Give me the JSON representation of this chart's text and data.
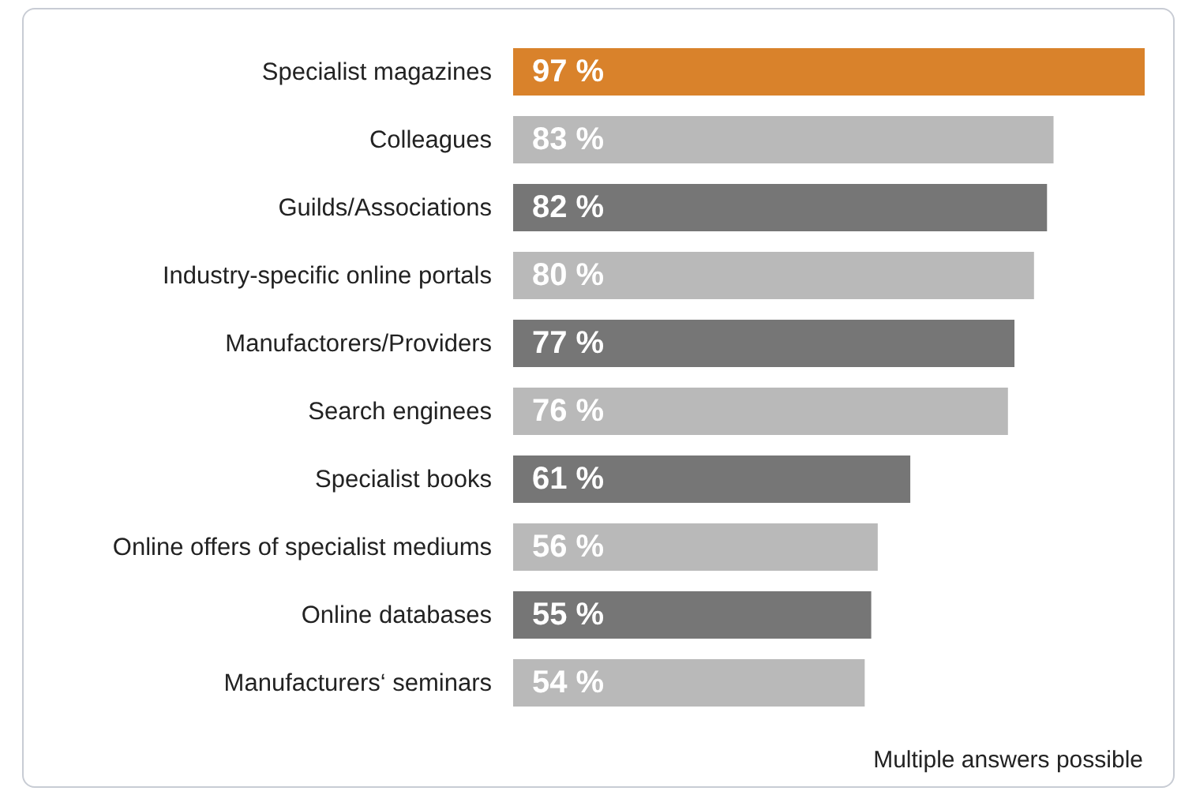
{
  "chart_data": {
    "type": "bar",
    "orientation": "horizontal",
    "xlim": [
      0,
      97
    ],
    "categories": [
      "Specialist magazines",
      "Colleagues",
      "Guilds/Associations",
      "Industry-specific online portals",
      "Manufactorers/Providers",
      "Search enginees",
      "Specialist books",
      "Online offers of specialist mediums",
      "Online databases",
      "Manufacturers‘ seminars"
    ],
    "values": [
      97,
      83,
      82,
      80,
      77,
      76,
      61,
      56,
      55,
      54
    ],
    "colors": [
      "#d9822b",
      "#b9b9b9",
      "#767676",
      "#b9b9b9",
      "#767676",
      "#b9b9b9",
      "#767676",
      "#b9b9b9",
      "#767676",
      "#b9b9b9"
    ],
    "value_labels": [
      "97 %",
      "83 %",
      "82 %",
      "80 %",
      "77 %",
      "76 %",
      "61 %",
      "56 %",
      "55 %",
      "54 %"
    ],
    "annotations": [
      "Multiple answers possible"
    ]
  }
}
